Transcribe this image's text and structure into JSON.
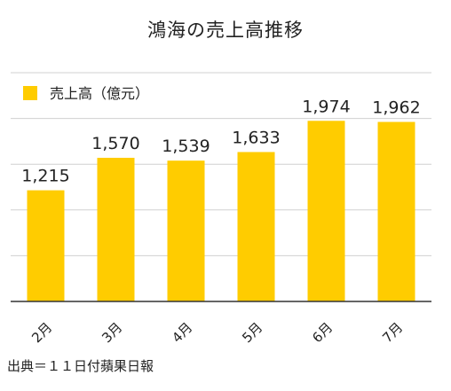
{
  "chart_data": {
    "type": "bar",
    "title": "鴻海の売上高推移",
    "legend": {
      "label": "売上高（億元）",
      "position": "top-left"
    },
    "categories": [
      "2月",
      "3月",
      "4月",
      "5月",
      "6月",
      "7月"
    ],
    "values": [
      1215,
      1570,
      1539,
      1633,
      1974,
      1962
    ],
    "value_labels": [
      "1,215",
      "1,570",
      "1,539",
      "1,633",
      "1,974",
      "1,962"
    ],
    "ylim": [
      0,
      2500
    ],
    "grid": true,
    "bar_color": "#FFCC00",
    "grid_color": "#D0D0D0",
    "axis_color": "#333333"
  },
  "source": "出典＝１１日付蘋果日報"
}
